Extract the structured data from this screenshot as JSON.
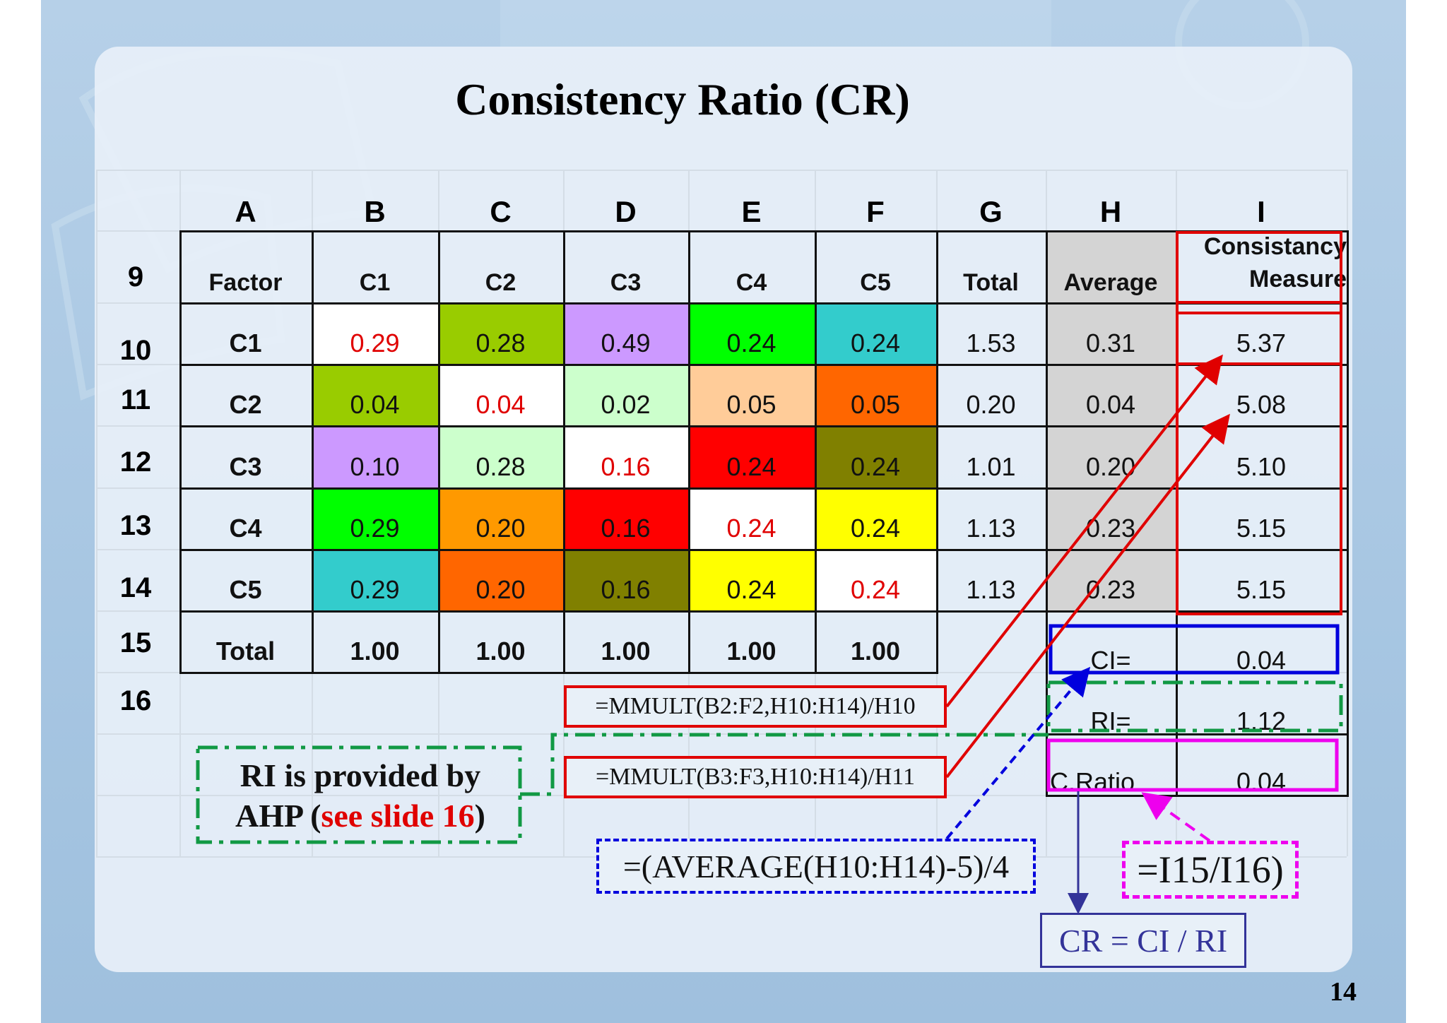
{
  "slide": {
    "title": "Consistency Ratio (CR)",
    "page_number": "14"
  },
  "sheet": {
    "column_headers": [
      "A",
      "B",
      "C",
      "D",
      "E",
      "F",
      "G",
      "H",
      "I"
    ],
    "row_numbers": [
      "9",
      "10",
      "11",
      "12",
      "13",
      "14",
      "15",
      "16"
    ],
    "header_row": {
      "factor": "Factor",
      "criteria": [
        "C1",
        "C2",
        "C3",
        "C4",
        "C5"
      ],
      "total": "Total",
      "average": "Average",
      "consistency_line1": "Consistancy",
      "consistency_line2": "Measure"
    },
    "rows": [
      {
        "label": "C1",
        "values": [
          "0.29",
          "0.28",
          "0.49",
          "0.24",
          "0.24"
        ],
        "total": "1.53",
        "average": "0.31",
        "measure": "5.37"
      },
      {
        "label": "C2",
        "values": [
          "0.04",
          "0.04",
          "0.02",
          "0.05",
          "0.05"
        ],
        "total": "0.20",
        "average": "0.04",
        "measure": "5.08"
      },
      {
        "label": "C3",
        "values": [
          "0.10",
          "0.28",
          "0.16",
          "0.24",
          "0.24"
        ],
        "total": "1.01",
        "average": "0.20",
        "measure": "5.10"
      },
      {
        "label": "C4",
        "values": [
          "0.29",
          "0.20",
          "0.16",
          "0.24",
          "0.24"
        ],
        "total": "1.13",
        "average": "0.23",
        "measure": "5.15"
      },
      {
        "label": "C5",
        "values": [
          "0.29",
          "0.20",
          "0.16",
          "0.24",
          "0.24"
        ],
        "total": "1.13",
        "average": "0.23",
        "measure": "5.15"
      }
    ],
    "fills": [
      [
        "#ffffff",
        "#99cc00",
        "#cc99ff",
        "#00ff00",
        "#33cccc"
      ],
      [
        "#99cc00",
        "#ffffff",
        "#ccffcc",
        "#ffcc99",
        "#ff6600"
      ],
      [
        "#cc99ff",
        "#ccffcc",
        "#ffffff",
        "#ff0000",
        "#808000"
      ],
      [
        "#00ff00",
        "#ff9900",
        "#ff0000",
        "#ffffff",
        "#ffff00"
      ],
      [
        "#33cccc",
        "#ff6600",
        "#808000",
        "#ffff00",
        "#ffffff"
      ]
    ],
    "totals_row": {
      "label": "Total",
      "values": [
        "1.00",
        "1.00",
        "1.00",
        "1.00",
        "1.00"
      ]
    },
    "summary": [
      {
        "label": "CI=",
        "value": "0.04"
      },
      {
        "label": "RI=",
        "value": "1.12"
      },
      {
        "label": "C.Ratio",
        "value": "0.04"
      }
    ]
  },
  "annotations": {
    "mmult_1": "=MMULT(B2:F2,H10:H14)/H10",
    "mmult_2": "=MMULT(B3:F3,H10:H14)/H11",
    "average_formula": "=(AVERAGE(H10:H14)-5)/4",
    "ratio_formula": "=I15/I16)",
    "cr_formula": "CR = CI / RI",
    "ri_note_line1": "RI is provided by",
    "ri_note_prefix": "AHP (",
    "ri_note_link": "see slide 16",
    "ri_note_suffix": ")"
  },
  "colors": {
    "diagonal_text": "#e00000",
    "red_annotation": "#e00000",
    "blue_annotation": "#0000dd",
    "green_annotation": "#119944",
    "magenta_annotation": "#ee00ee",
    "average_fill": "#d4d4d4",
    "cr_box": "#333399"
  }
}
